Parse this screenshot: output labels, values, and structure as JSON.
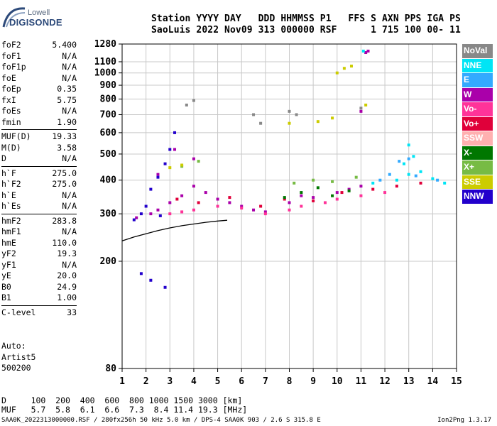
{
  "logo": {
    "line1": "Lowell",
    "line2": "DIGISONDE"
  },
  "header": {
    "line1": "Station YYYY DAY   DDD HHMMSS P1   FFS S AXN PPS IGA PS",
    "line2": "SaoLuis 2022 Nov09 313 000000 RSF      1 715 100 00- 11"
  },
  "params": [
    {
      "k": "foF2",
      "v": "5.400"
    },
    {
      "k": "foF1",
      "v": "N/A"
    },
    {
      "k": "foF1p",
      "v": "N/A"
    },
    {
      "k": "foE",
      "v": "N/A"
    },
    {
      "k": "foEp",
      "v": "0.35"
    },
    {
      "k": "fxI",
      "v": "5.75"
    },
    {
      "k": "foEs",
      "v": "N/A"
    },
    {
      "k": "fmin",
      "v": "1.90"
    },
    {
      "k": "MUF(D)",
      "v": "19.33",
      "sep": true
    },
    {
      "k": "M(D)",
      "v": "3.58"
    },
    {
      "k": "D",
      "v": "N/A"
    },
    {
      "k": "h`F",
      "v": "275.0",
      "sep": true
    },
    {
      "k": "h`F2",
      "v": "275.0"
    },
    {
      "k": "h`E",
      "v": "N/A"
    },
    {
      "k": "h`Es",
      "v": "N/A"
    },
    {
      "k": "hmF2",
      "v": "283.8",
      "sep": true
    },
    {
      "k": "hmF1",
      "v": "N/A"
    },
    {
      "k": "hmE",
      "v": "110.0"
    },
    {
      "k": "yF2",
      "v": "19.3"
    },
    {
      "k": "yF1",
      "v": "N/A"
    },
    {
      "k": "yE",
      "v": "20.0"
    },
    {
      "k": "B0",
      "v": "24.9"
    },
    {
      "k": "B1",
      "v": "1.00"
    },
    {
      "k": "C-level",
      "v": "33",
      "sep": true
    }
  ],
  "auto": {
    "line1": "Auto:",
    "line2": "Artist5",
    "line3": "500200"
  },
  "dtable": {
    "d_label": "D",
    "d_values": "100  200  400  600  800 1000 1500 3000 [km]",
    "muf_label": "MUF",
    "muf_values": "5.7  5.8  6.1  6.6  7.3  8.4 11.4 19.3 [MHz]"
  },
  "footer": {
    "left": "SAA0K_2022313000000.RSF / 280fx256h 50 kHz 5.0 km / DPS-4 SAA0K 903 / 2.6 S 315.8 E",
    "right": "Ion2Png 1.3.17"
  },
  "legend": [
    {
      "label": "NoVal",
      "color": "#888888"
    },
    {
      "label": "NNE",
      "color": "#00e5f5"
    },
    {
      "label": "E",
      "color": "#33aaff"
    },
    {
      "label": "W",
      "color": "#aa00aa"
    },
    {
      "label": "Vo-",
      "color": "#ff3399"
    },
    {
      "label": "Vo+",
      "color": "#e0003a"
    },
    {
      "label": "SSW",
      "color": "#ffb0b0"
    },
    {
      "label": "X-",
      "color": "#007700"
    },
    {
      "label": "X+",
      "color": "#77bb44"
    },
    {
      "label": "SSE",
      "color": "#cccc00"
    },
    {
      "label": "NNW",
      "color": "#2200cc"
    }
  ],
  "chart_data": {
    "type": "scatter",
    "x_ticks": [
      1,
      2,
      3,
      4,
      5,
      6,
      7,
      8,
      9,
      10,
      11,
      12,
      13,
      14,
      15
    ],
    "y_ticks": [
      80,
      200,
      300,
      400,
      500,
      600,
      700,
      800,
      900,
      1000,
      1100,
      1280
    ],
    "xlim": [
      1,
      15
    ],
    "ylim": [
      80,
      1280
    ],
    "y_scale": "log",
    "grid": true,
    "series": [
      {
        "color": "#aa00aa",
        "points": [
          [
            1.6,
            290
          ],
          [
            2.2,
            300
          ],
          [
            2.5,
            310
          ],
          [
            3.0,
            330
          ],
          [
            3.5,
            350
          ],
          [
            4.0,
            380
          ],
          [
            4.5,
            360
          ],
          [
            5.0,
            340
          ],
          [
            5.5,
            330
          ],
          [
            6.0,
            320
          ],
          [
            6.5,
            310
          ],
          [
            7.0,
            305
          ],
          [
            8.0,
            330
          ],
          [
            8.5,
            350
          ],
          [
            9.0,
            345
          ],
          [
            10.0,
            360
          ],
          [
            10.5,
            370
          ],
          [
            11.0,
            380
          ],
          [
            2.5,
            420
          ],
          [
            3.2,
            520
          ],
          [
            4.0,
            480
          ],
          [
            11.0,
            720
          ],
          [
            11.2,
            1190
          ],
          [
            11.3,
            1205
          ]
        ]
      },
      {
        "color": "#ff3399",
        "points": [
          [
            3.0,
            300
          ],
          [
            3.5,
            305
          ],
          [
            4.0,
            310
          ],
          [
            5.0,
            320
          ],
          [
            6.0,
            315
          ],
          [
            7.0,
            300
          ],
          [
            8.0,
            310
          ],
          [
            8.5,
            320
          ],
          [
            9.5,
            330
          ],
          [
            10.0,
            340
          ],
          [
            11.0,
            350
          ],
          [
            12.0,
            360
          ]
        ]
      },
      {
        "color": "#e0003a",
        "points": [
          [
            3.3,
            340
          ],
          [
            4.2,
            330
          ],
          [
            5.5,
            345
          ],
          [
            6.8,
            320
          ],
          [
            7.8,
            340
          ],
          [
            9.0,
            335
          ],
          [
            10.2,
            360
          ],
          [
            11.5,
            370
          ],
          [
            12.5,
            380
          ],
          [
            13.5,
            390
          ]
        ]
      },
      {
        "color": "#2200cc",
        "points": [
          [
            1.5,
            285
          ],
          [
            1.8,
            300
          ],
          [
            2.0,
            320
          ],
          [
            2.2,
            370
          ],
          [
            2.5,
            410
          ],
          [
            2.8,
            460
          ],
          [
            3.0,
            520
          ],
          [
            3.2,
            600
          ],
          [
            2.6,
            295
          ],
          [
            1.8,
            180
          ],
          [
            2.2,
            170
          ],
          [
            2.8,
            160
          ]
        ]
      },
      {
        "color": "#007700",
        "points": [
          [
            7.8,
            345
          ],
          [
            8.5,
            360
          ],
          [
            9.2,
            375
          ],
          [
            9.8,
            350
          ],
          [
            10.5,
            365
          ]
        ]
      },
      {
        "color": "#77bb44",
        "points": [
          [
            8.2,
            390
          ],
          [
            9.0,
            400
          ],
          [
            9.8,
            395
          ],
          [
            10.8,
            410
          ],
          [
            3.5,
            450
          ],
          [
            4.2,
            470
          ]
        ]
      },
      {
        "color": "#cccc00",
        "points": [
          [
            3.0,
            445
          ],
          [
            3.5,
            455
          ],
          [
            9.2,
            660
          ],
          [
            9.8,
            680
          ],
          [
            10.0,
            1000
          ],
          [
            10.3,
            1040
          ],
          [
            10.6,
            1060
          ],
          [
            11.2,
            760
          ],
          [
            8.0,
            650
          ]
        ]
      },
      {
        "color": "#00e5f5",
        "points": [
          [
            11.5,
            390
          ],
          [
            12.5,
            400
          ],
          [
            13.0,
            420
          ],
          [
            13.5,
            430
          ],
          [
            14.0,
            405
          ],
          [
            14.5,
            390
          ],
          [
            12.8,
            460
          ],
          [
            13.2,
            490
          ],
          [
            11.1,
            1205
          ],
          [
            13.0,
            540
          ]
        ]
      },
      {
        "color": "#33aaff",
        "points": [
          [
            11.8,
            400
          ],
          [
            12.2,
            420
          ],
          [
            13.3,
            415
          ],
          [
            14.2,
            400
          ],
          [
            12.6,
            470
          ],
          [
            13.0,
            480
          ]
        ]
      },
      {
        "color": "#888888",
        "points": [
          [
            8.0,
            720
          ],
          [
            8.3,
            700
          ],
          [
            11.0,
            740
          ],
          [
            4.0,
            790
          ],
          [
            3.7,
            760
          ],
          [
            6.5,
            700
          ],
          [
            6.8,
            650
          ]
        ]
      }
    ],
    "trace": {
      "color": "#000000",
      "points": [
        [
          1.0,
          238
        ],
        [
          1.5,
          246
        ],
        [
          2.0,
          253
        ],
        [
          2.5,
          260
        ],
        [
          3.0,
          266
        ],
        [
          3.5,
          271
        ],
        [
          4.0,
          275
        ],
        [
          4.5,
          279
        ],
        [
          5.0,
          282
        ],
        [
          5.4,
          284
        ]
      ]
    }
  }
}
